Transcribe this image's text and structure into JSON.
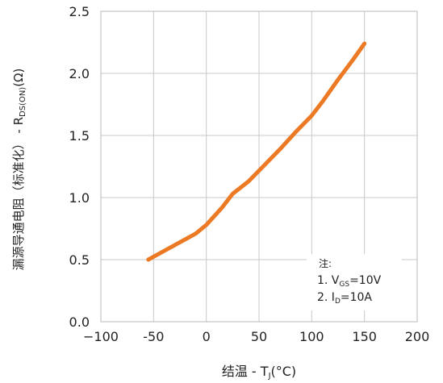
{
  "chart_data": {
    "type": "line",
    "title": "",
    "xlabel": "结温 - T",
    "xlabel_sub": "J",
    "xlabel_unit": "(°C)",
    "ylabel": "漏源导通电阻（标准化） - R",
    "ylabel_sub": "DS(ON)",
    "ylabel_unit": "(Ω)",
    "xlim": [
      -100,
      200
    ],
    "ylim": [
      0.0,
      2.5
    ],
    "x_ticks": [
      -100,
      -50,
      0,
      50,
      100,
      150,
      200
    ],
    "x_tick_labels": [
      "−100",
      "-50",
      "0",
      "50",
      "100",
      "150",
      "200"
    ],
    "y_ticks": [
      0.0,
      0.5,
      1.0,
      1.5,
      2.0,
      2.5
    ],
    "y_tick_labels": [
      "0.0",
      "0.5",
      "1.0",
      "1.5",
      "2.0",
      "2.5"
    ],
    "grid": true,
    "series": [
      {
        "color": "#ec7a25",
        "x": [
          -55,
          -40,
          -25,
          -10,
          0,
          15,
          25,
          40,
          55,
          70,
          85,
          100,
          110,
          125,
          140,
          150
        ],
        "y": [
          0.5,
          0.57,
          0.64,
          0.71,
          0.78,
          0.92,
          1.03,
          1.13,
          1.26,
          1.39,
          1.53,
          1.66,
          1.77,
          1.95,
          2.12,
          2.24
        ]
      }
    ],
    "annotation": {
      "title": "注:",
      "lines": [
        {
          "prefix": "1. V",
          "sub": "GS",
          "suffix": "=10V"
        },
        {
          "prefix": "2. I",
          "sub": "D",
          "suffix": "=10A"
        }
      ]
    }
  }
}
